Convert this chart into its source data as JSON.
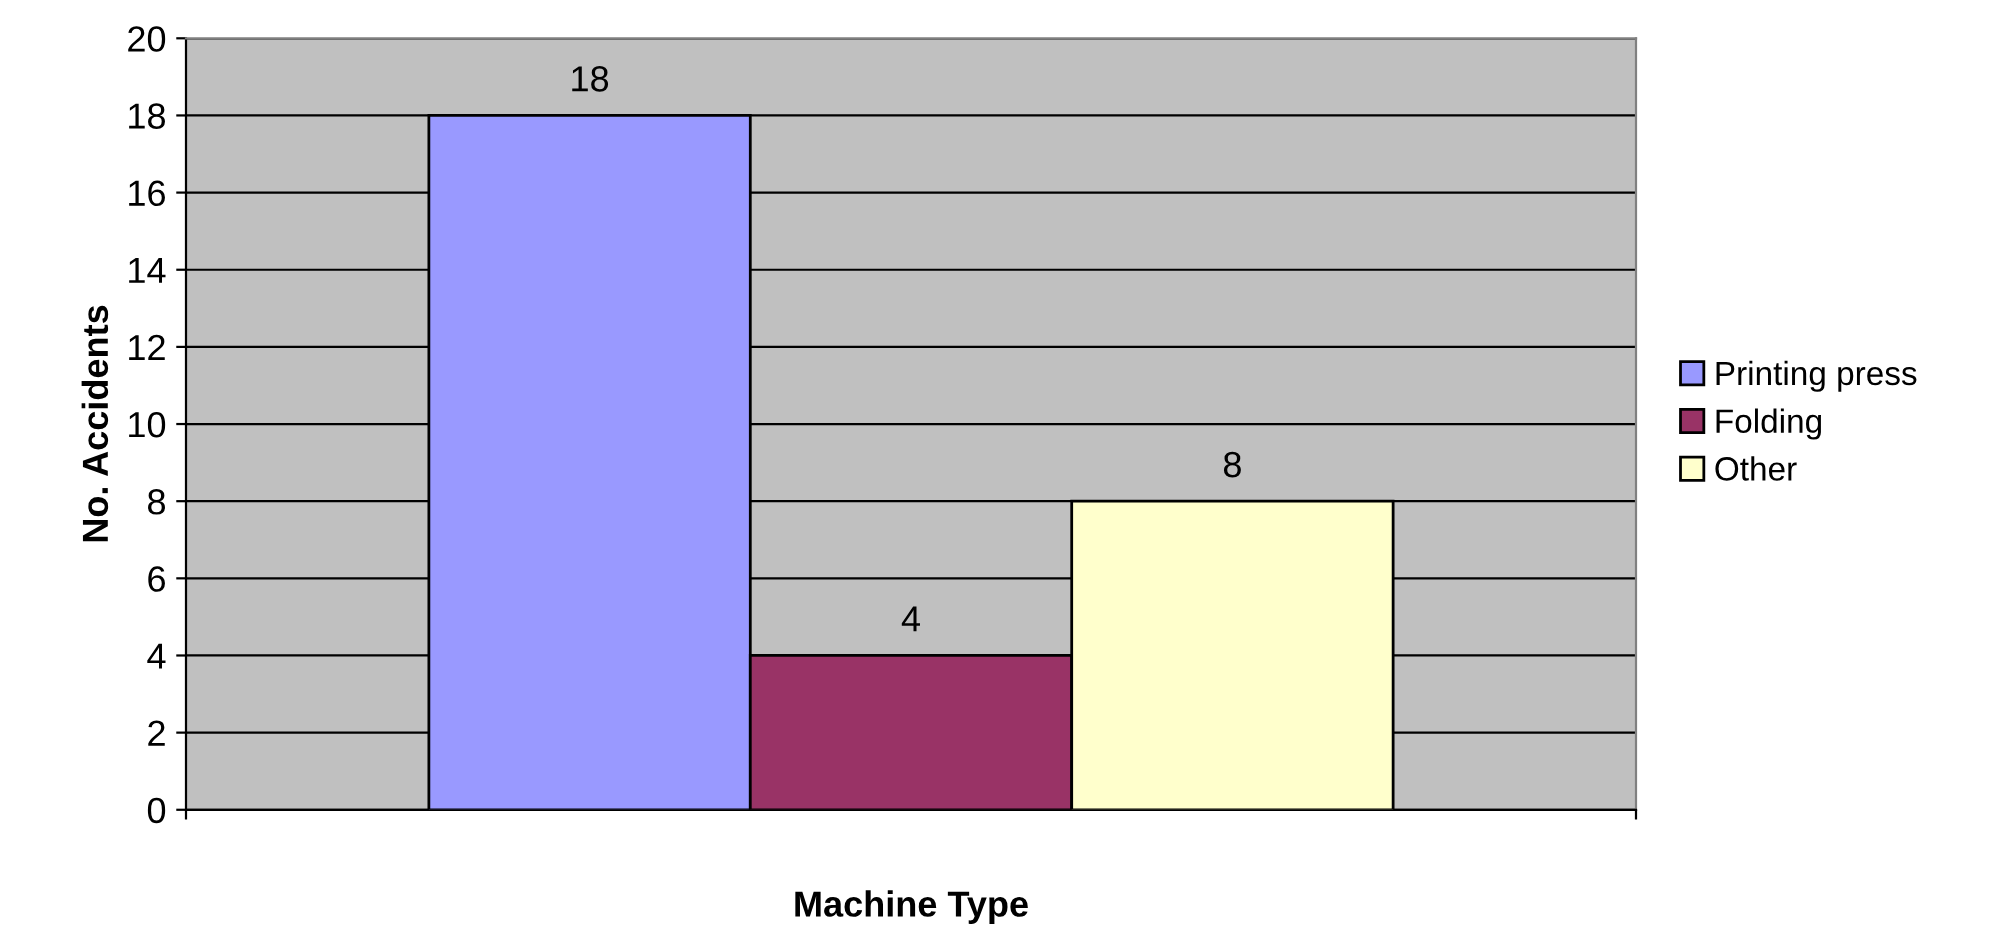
{
  "chart_data": {
    "type": "bar",
    "xlabel": "Machine Type",
    "ylabel": "No. Accidents",
    "categories": [
      null
    ],
    "series": [
      {
        "name": "Printing press",
        "color": "#9999ff",
        "values": [
          18
        ]
      },
      {
        "name": "Folding",
        "color": "#993366",
        "values": [
          4
        ]
      },
      {
        "name": "Other",
        "color": "#ffffcc",
        "values": [
          8
        ]
      }
    ],
    "ylim": [
      0,
      20
    ],
    "yticks": [
      0,
      2,
      4,
      6,
      8,
      10,
      12,
      14,
      16,
      18,
      20
    ],
    "grid": "y",
    "legend": "right",
    "data_labels": true
  }
}
